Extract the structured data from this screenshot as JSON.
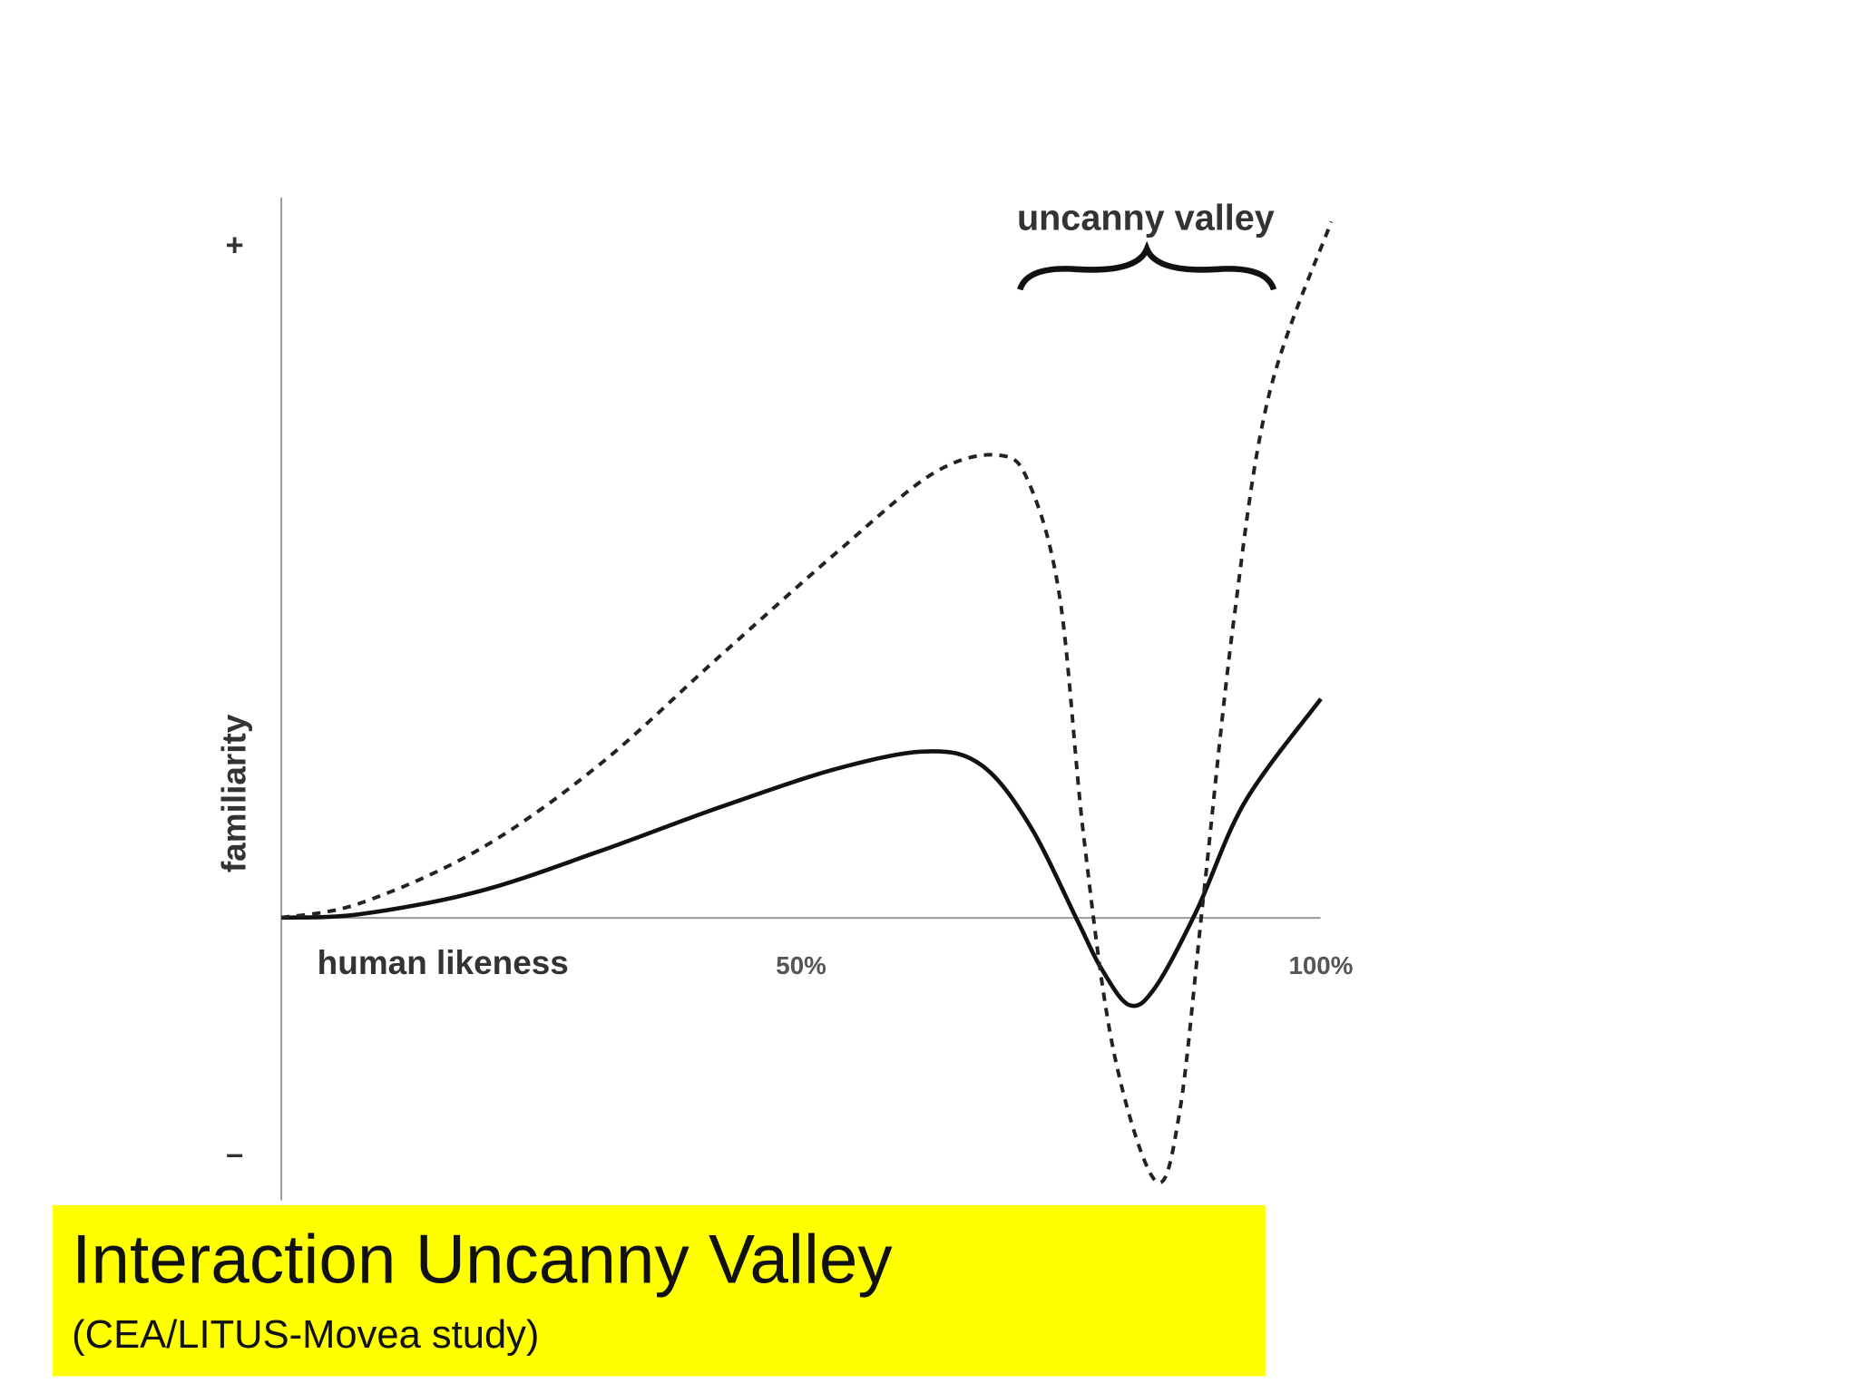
{
  "chart_data": {
    "type": "line",
    "annotation": "uncanny valley",
    "xlabel": "human likeness",
    "ylabel": "familiarity",
    "xlim": [
      0,
      101
    ],
    "xticks": [
      {
        "value": 50,
        "label": "50%"
      },
      {
        "value": 100,
        "label": "100%"
      }
    ],
    "ylim": [
      -0.42,
      1.07
    ],
    "yticks": [
      {
        "value": 1,
        "label": "+"
      },
      {
        "value": -0.35,
        "label": "–"
      }
    ],
    "series": [
      {
        "color": "#111111",
        "style": "solid",
        "x": [
          0,
          7.5,
          19,
          30.5,
          42,
          53.6,
          62.2,
          67.4,
          72,
          76.6,
          78.9,
          81.6,
          84.1,
          88.1,
          92.7,
          100
        ],
        "values": [
          0,
          0.005,
          0.039,
          0.098,
          0.163,
          0.222,
          0.247,
          0.226,
          0.137,
          -0.005,
          -0.076,
          -0.13,
          -0.103,
          0.012,
          0.172,
          0.325
        ]
      },
      {
        "color": "#222222",
        "style": "dashed",
        "x": [
          0,
          7.5,
          19,
          30.5,
          42,
          53.6,
          62.8,
          69.1,
          72,
          74.9,
          77.2,
          80.1,
          84.1,
          86.4,
          88.7,
          91.6,
          95,
          101
        ],
        "values": [
          0,
          0.021,
          0.101,
          0.226,
          0.386,
          0.545,
          0.661,
          0.687,
          0.643,
          0.474,
          0.119,
          -0.201,
          -0.391,
          -0.29,
          0.03,
          0.439,
          0.776,
          1.034
        ]
      }
    ]
  },
  "caption": {
    "title": "Interaction Uncanny Valley",
    "subtitle": "(CEA/LITUS-Movea study)"
  }
}
